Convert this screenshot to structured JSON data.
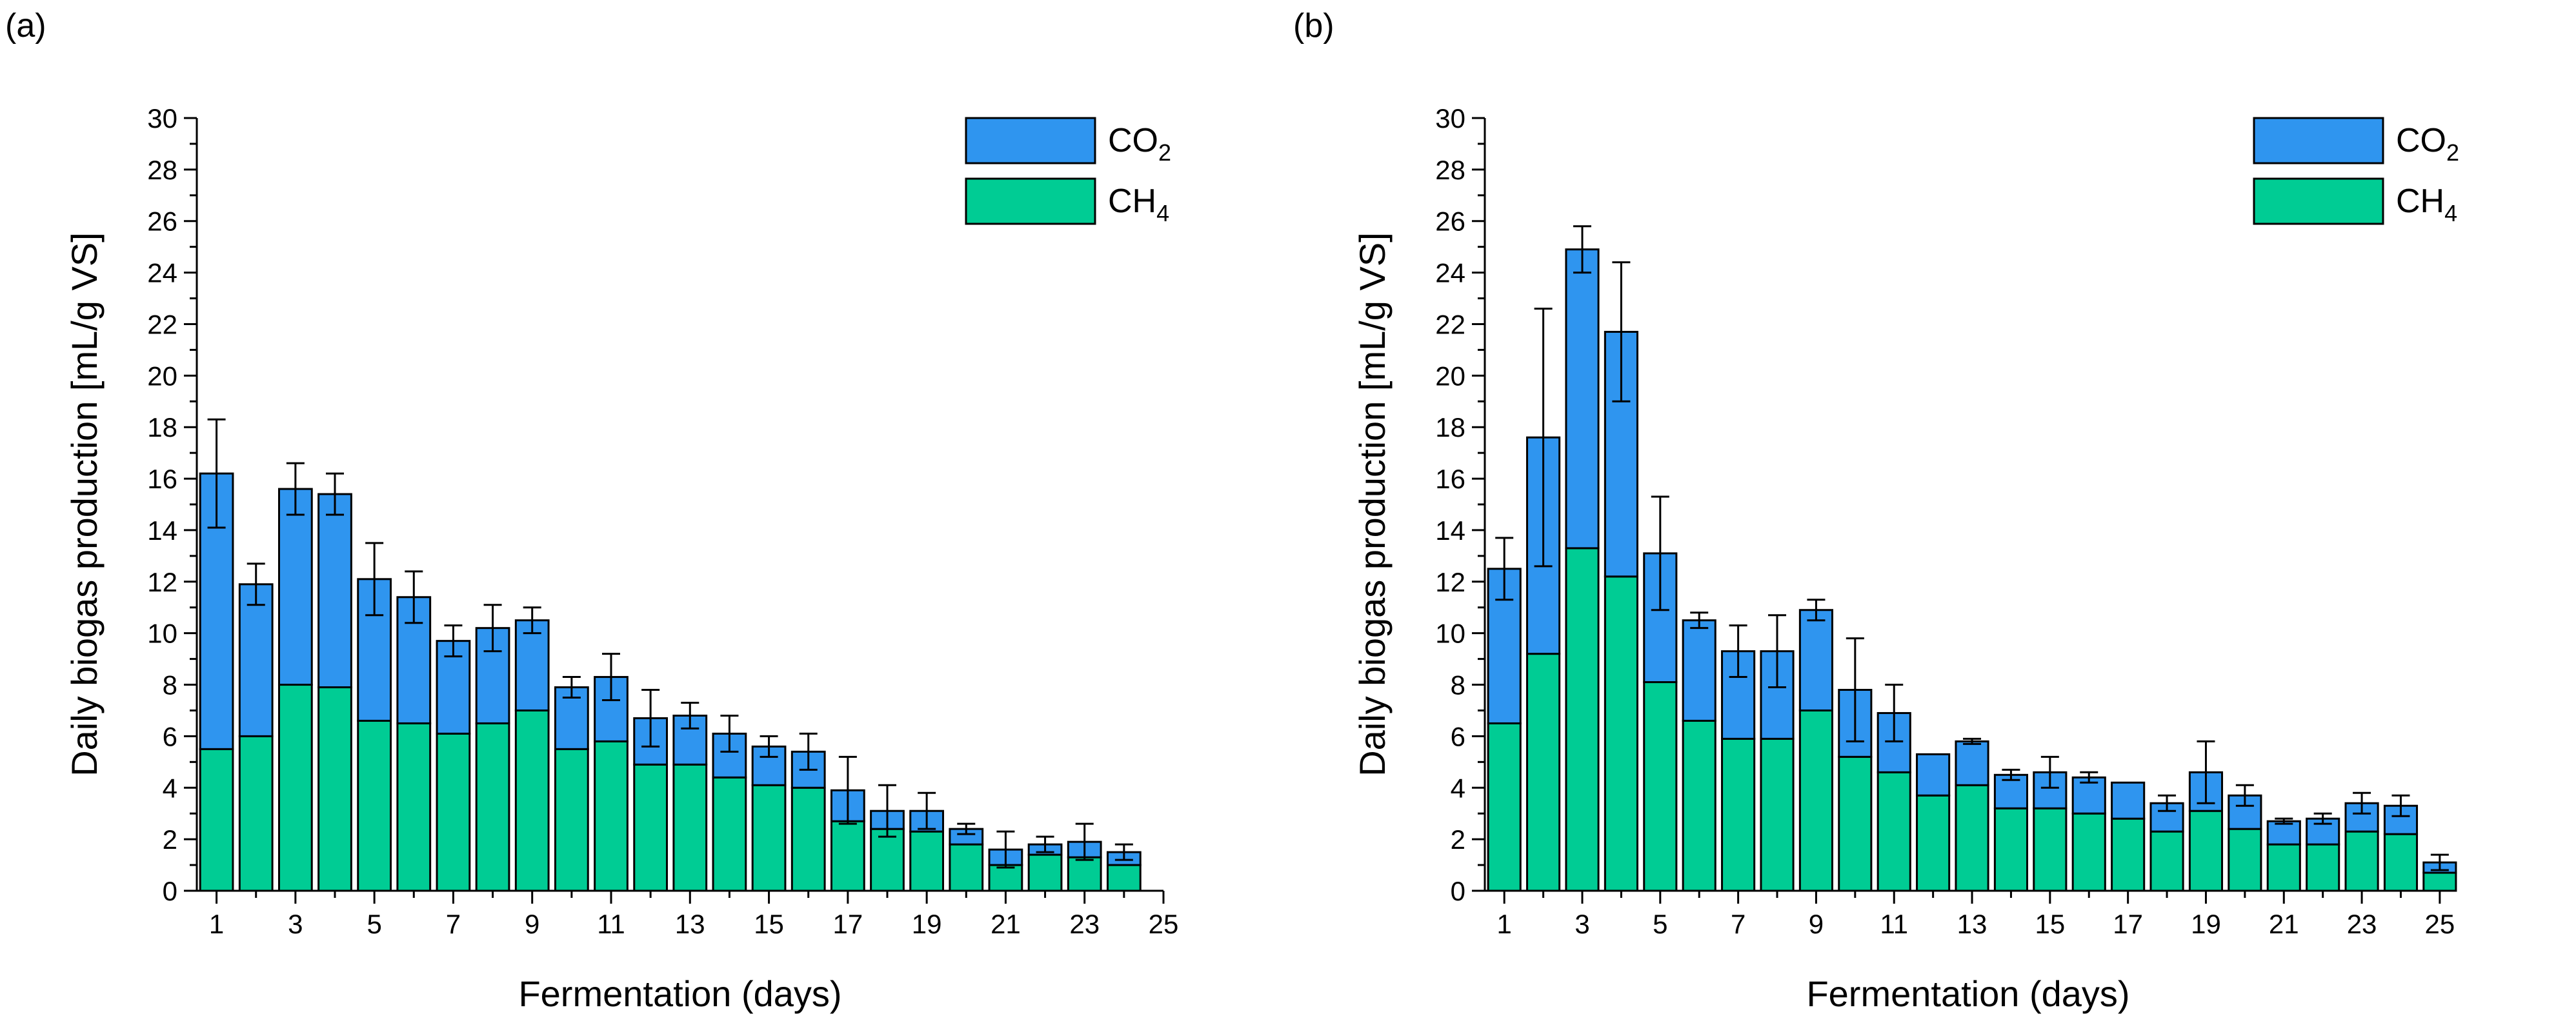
{
  "chart_data": [
    {
      "type": "bar",
      "stacked": true,
      "panel_label": "(a)",
      "xlabel": "Fermentation (days)",
      "ylabel": "Daily biogas production [mL/g VS]",
      "ylim": [
        0,
        30
      ],
      "xlim": [
        0.5,
        25
      ],
      "xticks": [
        "1",
        "3",
        "5",
        "7",
        "9",
        "11",
        "13",
        "15",
        "17",
        "19",
        "21",
        "23",
        "25"
      ],
      "yticks": [
        "0",
        "2",
        "4",
        "6",
        "8",
        "10",
        "12",
        "14",
        "16",
        "18",
        "20",
        "22",
        "24",
        "26",
        "28",
        "30"
      ],
      "legend_position": "top-right",
      "categories": [
        1,
        2,
        3,
        4,
        5,
        6,
        7,
        8,
        9,
        10,
        11,
        12,
        13,
        14,
        15,
        16,
        17,
        18,
        19,
        20,
        21,
        22,
        23,
        24
      ],
      "series": [
        {
          "name": "CH4",
          "label_main": "CH",
          "label_sub": "4",
          "color": "#00CC94",
          "values": [
            5.5,
            6.0,
            8.0,
            7.9,
            6.6,
            6.5,
            6.1,
            6.5,
            7.0,
            5.5,
            5.8,
            4.9,
            4.9,
            4.4,
            4.1,
            4.0,
            2.7,
            2.4,
            2.3,
            1.8,
            1.0,
            1.4,
            1.3,
            1.0
          ]
        },
        {
          "name": "CO2",
          "label_main": "CO",
          "label_sub": "2",
          "color": "#2F95EF",
          "values": [
            10.7,
            5.9,
            7.6,
            7.5,
            5.5,
            4.9,
            3.6,
            3.7,
            3.5,
            2.4,
            2.5,
            1.8,
            1.9,
            1.7,
            1.5,
            1.4,
            1.2,
            0.7,
            0.8,
            0.6,
            0.6,
            0.4,
            0.6,
            0.5
          ]
        }
      ],
      "totals": [
        16.2,
        11.9,
        15.6,
        15.4,
        12.1,
        11.4,
        9.7,
        10.2,
        10.5,
        7.9,
        8.3,
        6.7,
        6.8,
        6.1,
        5.6,
        5.4,
        3.9,
        3.1,
        3.1,
        2.4,
        1.6,
        1.8,
        1.9,
        1.5
      ],
      "error": [
        2.1,
        0.8,
        1.0,
        0.8,
        1.4,
        1.0,
        0.6,
        0.9,
        0.5,
        0.4,
        0.9,
        1.1,
        0.5,
        0.7,
        0.4,
        0.7,
        1.3,
        1.0,
        0.7,
        0.2,
        0.7,
        0.3,
        0.7,
        0.3
      ]
    },
    {
      "type": "bar",
      "stacked": true,
      "panel_label": "(b)",
      "xlabel": "Fermentation (days)",
      "ylabel": "Daily biogas production [mL/g VS]",
      "ylim": [
        0,
        30
      ],
      "xlim": [
        0.5,
        25.3
      ],
      "xticks": [
        "1",
        "3",
        "5",
        "7",
        "9",
        "11",
        "13",
        "15",
        "17",
        "19",
        "21",
        "23",
        "25"
      ],
      "yticks": [
        "0",
        "2",
        "4",
        "6",
        "8",
        "10",
        "12",
        "14",
        "16",
        "18",
        "20",
        "22",
        "24",
        "26",
        "28",
        "30"
      ],
      "legend_position": "top-right",
      "categories": [
        1,
        2,
        3,
        4,
        5,
        6,
        7,
        8,
        9,
        10,
        11,
        12,
        13,
        14,
        15,
        16,
        17,
        18,
        19,
        20,
        21,
        22,
        23,
        24,
        25
      ],
      "series": [
        {
          "name": "CH4",
          "label_main": "CH",
          "label_sub": "4",
          "color": "#00CC94",
          "values": [
            6.5,
            9.2,
            13.3,
            12.2,
            8.1,
            6.6,
            5.9,
            5.9,
            7.0,
            5.2,
            4.6,
            3.7,
            4.1,
            3.2,
            3.2,
            3.0,
            2.8,
            2.3,
            3.1,
            2.4,
            1.8,
            1.8,
            2.3,
            2.2,
            0.7
          ]
        },
        {
          "name": "CO2",
          "label_main": "CO",
          "label_sub": "2",
          "color": "#2F95EF",
          "values": [
            6.0,
            8.4,
            11.6,
            9.5,
            5.0,
            3.9,
            3.4,
            3.4,
            3.9,
            2.6,
            2.3,
            1.6,
            1.7,
            1.3,
            1.4,
            1.4,
            1.4,
            1.1,
            1.5,
            1.3,
            0.9,
            1.0,
            1.1,
            1.1,
            0.4
          ]
        }
      ],
      "totals": [
        12.5,
        17.6,
        24.9,
        21.7,
        13.1,
        10.5,
        9.3,
        9.3,
        10.9,
        7.8,
        6.9,
        5.3,
        5.8,
        4.5,
        4.6,
        4.4,
        4.2,
        3.4,
        4.6,
        3.7,
        2.7,
        2.8,
        3.4,
        3.3,
        1.1
      ],
      "error": [
        1.2,
        5.0,
        0.9,
        2.7,
        2.2,
        0.3,
        1.0,
        1.4,
        0.4,
        2.0,
        1.1,
        0.0,
        0.1,
        0.2,
        0.6,
        0.2,
        0.0,
        0.3,
        1.2,
        0.4,
        0.1,
        0.2,
        0.4,
        0.4,
        0.3
      ]
    }
  ]
}
